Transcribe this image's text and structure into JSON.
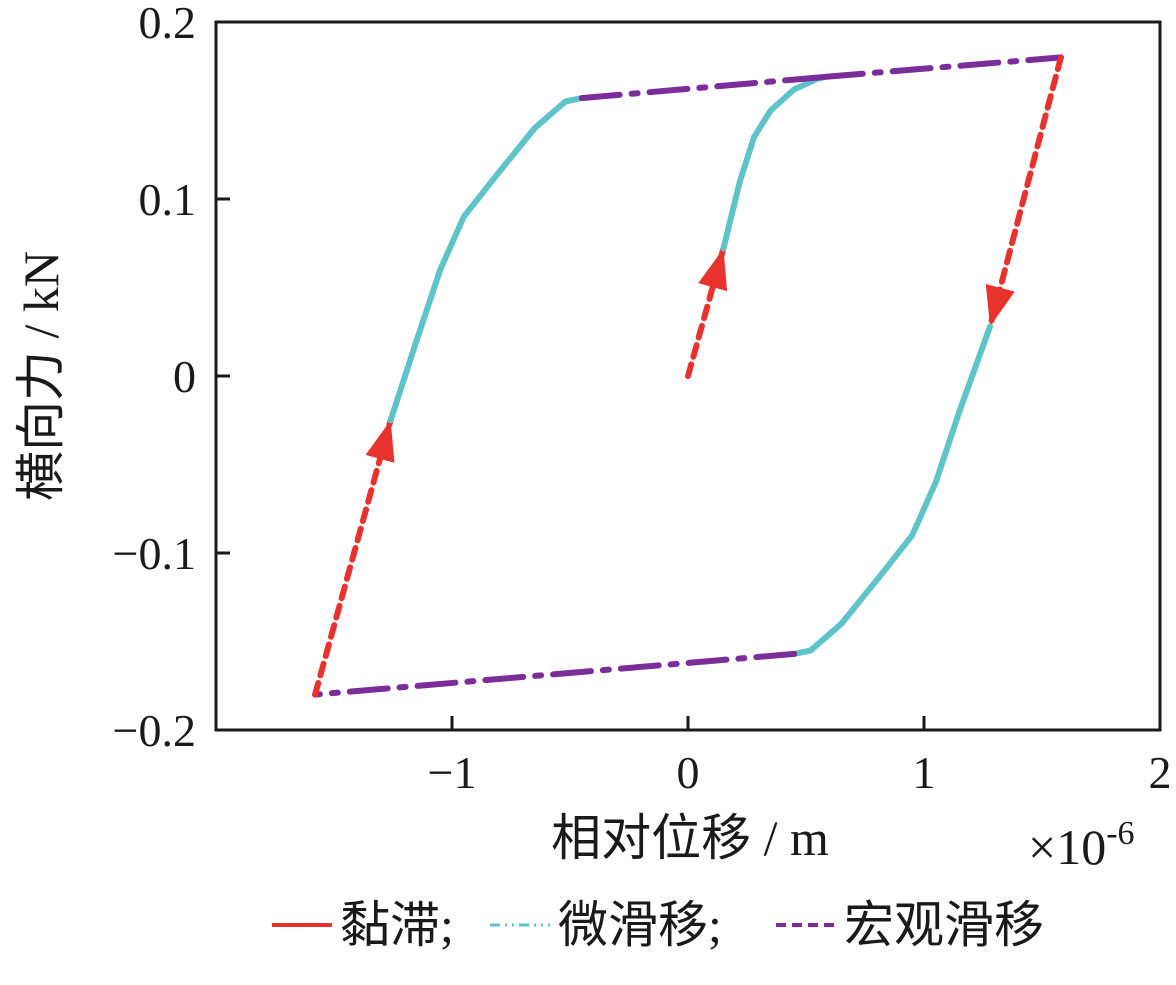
{
  "chart_data": {
    "type": "line",
    "title": "",
    "xlabel": "相对位移 / m",
    "ylabel": "横向力 / kN",
    "x_multiplier": "×10",
    "x_multiplier_exp": "-6",
    "xlim": [
      -2,
      2
    ],
    "ylim": [
      -0.2,
      0.2
    ],
    "x_ticks": [
      -1,
      0,
      1,
      2
    ],
    "x_tick_labels": [
      "−1",
      "0",
      "1",
      "2"
    ],
    "y_ticks": [
      -0.2,
      -0.1,
      0,
      0.1,
      0.2
    ],
    "y_tick_labels": [
      "−0.2",
      "−0.1",
      "0",
      "0.1",
      "0.2"
    ],
    "grid": false,
    "legend_position": "bottom",
    "colors": {
      "stick": "#e8322d",
      "micro_slip": "#5ec4c9",
      "macro_slip": "#7b2d9a",
      "axis": "#1a1a1a"
    },
    "legend": [
      {
        "key": "stick",
        "label": "黏滞;",
        "color": "#e8322d"
      },
      {
        "key": "micro_slip",
        "label": "微滑移;",
        "color": "#5ec4c9"
      },
      {
        "key": "macro_slip",
        "label": "宏观滑移",
        "color": "#7b2d9a"
      }
    ],
    "series": [
      {
        "key": "stick",
        "arrow": true,
        "points": [
          [
            0.0,
            0.0
          ],
          [
            0.15,
            0.072
          ]
        ]
      },
      {
        "key": "micro_slip",
        "points": [
          [
            0.15,
            0.072
          ],
          [
            0.22,
            0.11
          ],
          [
            0.28,
            0.135
          ],
          [
            0.35,
            0.15
          ],
          [
            0.45,
            0.162
          ],
          [
            0.55,
            0.168
          ],
          [
            0.58,
            0.169
          ]
        ]
      },
      {
        "key": "macro_slip",
        "points": [
          [
            0.58,
            0.169
          ],
          [
            1.58,
            0.18
          ]
        ]
      },
      {
        "key": "stick",
        "arrow": true,
        "points": [
          [
            1.58,
            0.18
          ],
          [
            1.28,
            0.028
          ]
        ]
      },
      {
        "key": "micro_slip",
        "points": [
          [
            1.28,
            0.028
          ],
          [
            1.15,
            -0.02
          ],
          [
            1.05,
            -0.06
          ],
          [
            0.95,
            -0.09
          ],
          [
            0.82,
            -0.112
          ],
          [
            0.65,
            -0.14
          ],
          [
            0.52,
            -0.155
          ],
          [
            0.45,
            -0.157
          ]
        ]
      },
      {
        "key": "macro_slip",
        "points": [
          [
            0.45,
            -0.157
          ],
          [
            -1.58,
            -0.18
          ]
        ]
      },
      {
        "key": "stick",
        "arrow": true,
        "points": [
          [
            -1.58,
            -0.18
          ],
          [
            -1.26,
            -0.025
          ]
        ]
      },
      {
        "key": "micro_slip",
        "points": [
          [
            -1.26,
            -0.025
          ],
          [
            -1.15,
            0.02
          ],
          [
            -1.05,
            0.06
          ],
          [
            -0.95,
            0.09
          ],
          [
            -0.82,
            0.112
          ],
          [
            -0.65,
            0.14
          ],
          [
            -0.52,
            0.155
          ],
          [
            -0.45,
            0.157
          ]
        ]
      },
      {
        "key": "macro_slip",
        "points": [
          [
            -0.45,
            0.157
          ],
          [
            0.58,
            0.169
          ]
        ]
      }
    ]
  }
}
